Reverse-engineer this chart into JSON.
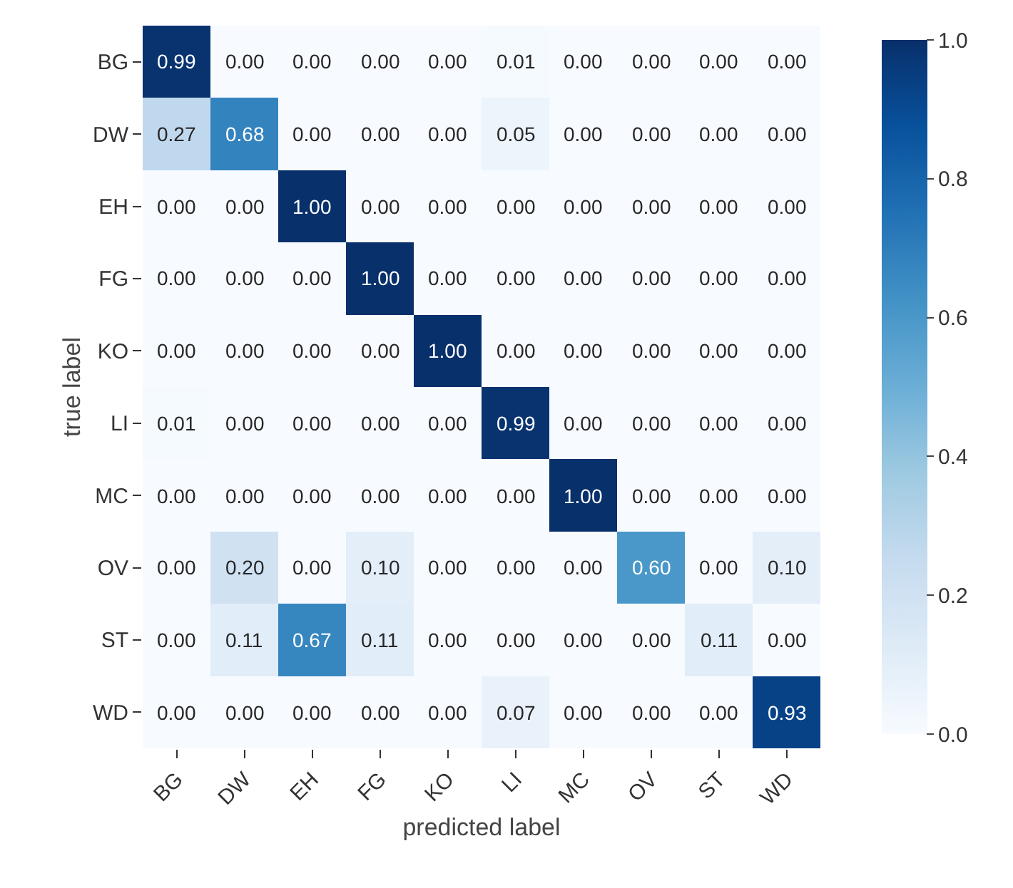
{
  "chart_data": {
    "type": "heatmap",
    "xlabel": "predicted label",
    "ylabel": "true label",
    "categories": [
      "BG",
      "DW",
      "EH",
      "FG",
      "KO",
      "LI",
      "MC",
      "OV",
      "ST",
      "WD"
    ],
    "y_categories": [
      "BG",
      "DW",
      "EH",
      "FG",
      "KO",
      "LI",
      "MC",
      "OV",
      "ST",
      "WD"
    ],
    "cells": [
      [
        0.99,
        0,
        0,
        0,
        0,
        0.01,
        0,
        0,
        0,
        0
      ],
      [
        0.27,
        0.68,
        0,
        0,
        0,
        0.05,
        0,
        0,
        0,
        0
      ],
      [
        0,
        0,
        1,
        0,
        0,
        0,
        0,
        0,
        0,
        0
      ],
      [
        0,
        0,
        0,
        1,
        0,
        0,
        0,
        0,
        0,
        0
      ],
      [
        0,
        0,
        0,
        0,
        1,
        0,
        0,
        0,
        0,
        0
      ],
      [
        0.01,
        0,
        0,
        0,
        0,
        0.99,
        0,
        0,
        0,
        0
      ],
      [
        0,
        0,
        0,
        0,
        0,
        0,
        1,
        0,
        0,
        0
      ],
      [
        0,
        0.2,
        0,
        0.1,
        0,
        0,
        0,
        0.6,
        0,
        0.1
      ],
      [
        0,
        0.11,
        0.67,
        0.11,
        0,
        0,
        0,
        0,
        0.11,
        0
      ],
      [
        0,
        0,
        0,
        0,
        0,
        0.07,
        0,
        0,
        0,
        0.93
      ]
    ],
    "cell_labels": [
      [
        "0.99",
        "0.00",
        "0.00",
        "0.00",
        "0.00",
        "0.01",
        "0.00",
        "0.00",
        "0.00",
        "0.00"
      ],
      [
        "0.27",
        "0.68",
        "0.00",
        "0.00",
        "0.00",
        "0.05",
        "0.00",
        "0.00",
        "0.00",
        "0.00"
      ],
      [
        "0.00",
        "0.00",
        "1.00",
        "0.00",
        "0.00",
        "0.00",
        "0.00",
        "0.00",
        "0.00",
        "0.00"
      ],
      [
        "0.00",
        "0.00",
        "0.00",
        "1.00",
        "0.00",
        "0.00",
        "0.00",
        "0.00",
        "0.00",
        "0.00"
      ],
      [
        "0.00",
        "0.00",
        "0.00",
        "0.00",
        "1.00",
        "0.00",
        "0.00",
        "0.00",
        "0.00",
        "0.00"
      ],
      [
        "0.01",
        "0.00",
        "0.00",
        "0.00",
        "0.00",
        "0.99",
        "0.00",
        "0.00",
        "0.00",
        "0.00"
      ],
      [
        "0.00",
        "0.00",
        "0.00",
        "0.00",
        "0.00",
        "0.00",
        "1.00",
        "0.00",
        "0.00",
        "0.00"
      ],
      [
        "0.00",
        "0.20",
        "0.00",
        "0.10",
        "0.00",
        "0.00",
        "0.00",
        "0.60",
        "0.00",
        "0.10"
      ],
      [
        "0.00",
        "0.11",
        "0.67",
        "0.11",
        "0.00",
        "0.00",
        "0.00",
        "0.00",
        "0.11",
        "0.00"
      ],
      [
        "0.00",
        "0.00",
        "0.00",
        "0.00",
        "0.00",
        "0.07",
        "0.00",
        "0.00",
        "0.00",
        "0.93"
      ]
    ],
    "clim": [
      0,
      1
    ],
    "cticks": [
      {
        "value": 0,
        "label": "0.0"
      },
      {
        "value": 0.2,
        "label": "0.2"
      },
      {
        "value": 0.4,
        "label": "0.4"
      },
      {
        "value": 0.6,
        "label": "0.6"
      },
      {
        "value": 0.8,
        "label": "0.8"
      },
      {
        "value": 1,
        "label": "1.0"
      }
    ]
  }
}
